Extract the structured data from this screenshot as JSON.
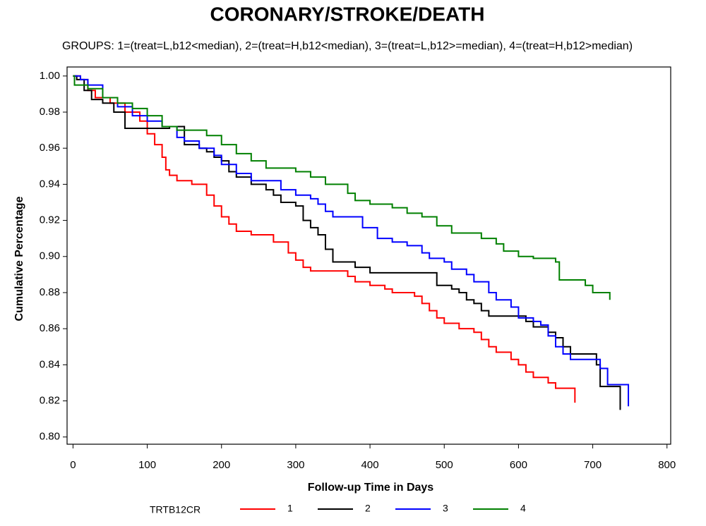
{
  "chart_data": {
    "type": "step",
    "title": "CORONARY/STROKE/DEATH",
    "subtitle": "GROUPS: 1=(treat=L,b12<median), 2=(treat=H,b12<median), 3=(treat=L,b12>=median), 4=(treat=H,b12>median)",
    "x_label": "Follow-up Time in Days",
    "y_label": "Cumulative Percentage",
    "legend_title": "TRTB12CR",
    "xlim": [
      -8,
      805
    ],
    "ylim": [
      0.796,
      1.005
    ],
    "xticks": [
      0,
      100,
      200,
      300,
      400,
      500,
      600,
      700,
      800
    ],
    "yticks": [
      {
        "value": 0.8,
        "label": "0.80"
      },
      {
        "value": 0.82,
        "label": "0.82"
      },
      {
        "value": 0.84,
        "label": "0.84"
      },
      {
        "value": 0.86,
        "label": "0.86"
      },
      {
        "value": 0.88,
        "label": "0.88"
      },
      {
        "value": 0.9,
        "label": "0.90"
      },
      {
        "value": 0.92,
        "label": "0.92"
      },
      {
        "value": 0.94,
        "label": "0.94"
      },
      {
        "value": 0.96,
        "label": "0.96"
      },
      {
        "value": 0.98,
        "label": "0.98"
      },
      {
        "value": 1.0,
        "label": "1.00"
      }
    ],
    "series": [
      {
        "name": "1",
        "color": "#ff0000",
        "x": [
          0,
          10,
          20,
          30,
          50,
          70,
          90,
          100,
          110,
          120,
          125,
          130,
          140,
          160,
          180,
          190,
          200,
          210,
          220,
          240,
          270,
          290,
          300,
          310,
          320,
          370,
          380,
          400,
          420,
          430,
          460,
          470,
          480,
          490,
          500,
          520,
          540,
          550,
          560,
          570,
          590,
          600,
          610,
          620,
          640,
          650,
          676
        ],
        "values": [
          1.0,
          0.998,
          0.992,
          0.988,
          0.985,
          0.98,
          0.975,
          0.968,
          0.962,
          0.955,
          0.948,
          0.945,
          0.942,
          0.94,
          0.934,
          0.928,
          0.922,
          0.918,
          0.914,
          0.912,
          0.908,
          0.902,
          0.898,
          0.894,
          0.892,
          0.889,
          0.886,
          0.884,
          0.882,
          0.88,
          0.878,
          0.874,
          0.87,
          0.866,
          0.863,
          0.86,
          0.858,
          0.854,
          0.85,
          0.847,
          0.843,
          0.84,
          0.836,
          0.833,
          0.83,
          0.827,
          0.819
        ]
      },
      {
        "name": "2",
        "color": "#000000",
        "x": [
          0,
          5,
          15,
          25,
          40,
          55,
          70,
          130,
          150,
          170,
          180,
          190,
          200,
          210,
          220,
          240,
          260,
          270,
          280,
          300,
          310,
          320,
          330,
          340,
          350,
          380,
          400,
          490,
          510,
          520,
          530,
          540,
          550,
          560,
          610,
          620,
          640,
          650,
          660,
          670,
          705,
          710,
          737
        ],
        "values": [
          1.0,
          0.998,
          0.992,
          0.987,
          0.985,
          0.98,
          0.971,
          0.972,
          0.962,
          0.96,
          0.958,
          0.955,
          0.953,
          0.947,
          0.944,
          0.94,
          0.937,
          0.934,
          0.93,
          0.928,
          0.92,
          0.916,
          0.912,
          0.904,
          0.897,
          0.894,
          0.891,
          0.884,
          0.882,
          0.88,
          0.876,
          0.874,
          0.87,
          0.867,
          0.864,
          0.861,
          0.858,
          0.855,
          0.85,
          0.846,
          0.84,
          0.828,
          0.815
        ]
      },
      {
        "name": "3",
        "color": "#0000ff",
        "x": [
          0,
          10,
          20,
          40,
          60,
          80,
          100,
          120,
          140,
          150,
          170,
          190,
          200,
          220,
          240,
          280,
          300,
          320,
          330,
          340,
          350,
          390,
          410,
          430,
          450,
          470,
          480,
          500,
          510,
          530,
          540,
          560,
          570,
          590,
          600,
          620,
          630,
          640,
          650,
          660,
          670,
          710,
          720,
          748
        ],
        "values": [
          1.0,
          0.998,
          0.995,
          0.988,
          0.983,
          0.978,
          0.975,
          0.972,
          0.966,
          0.964,
          0.96,
          0.956,
          0.951,
          0.946,
          0.942,
          0.937,
          0.934,
          0.932,
          0.929,
          0.925,
          0.922,
          0.916,
          0.91,
          0.908,
          0.906,
          0.902,
          0.899,
          0.897,
          0.893,
          0.89,
          0.886,
          0.88,
          0.876,
          0.872,
          0.866,
          0.864,
          0.862,
          0.856,
          0.85,
          0.846,
          0.843,
          0.838,
          0.829,
          0.817
        ]
      },
      {
        "name": "4",
        "color": "#008000",
        "x": [
          0,
          2,
          20,
          40,
          60,
          80,
          100,
          120,
          140,
          180,
          200,
          220,
          240,
          260,
          300,
          320,
          340,
          370,
          380,
          400,
          430,
          450,
          470,
          490,
          510,
          550,
          570,
          580,
          600,
          620,
          650,
          655,
          690,
          700,
          723
        ],
        "values": [
          1.0,
          0.995,
          0.993,
          0.988,
          0.985,
          0.982,
          0.978,
          0.972,
          0.97,
          0.967,
          0.962,
          0.957,
          0.953,
          0.949,
          0.947,
          0.944,
          0.94,
          0.935,
          0.931,
          0.929,
          0.927,
          0.924,
          0.922,
          0.917,
          0.913,
          0.91,
          0.907,
          0.903,
          0.9,
          0.899,
          0.897,
          0.887,
          0.884,
          0.88,
          0.876
        ]
      }
    ]
  }
}
